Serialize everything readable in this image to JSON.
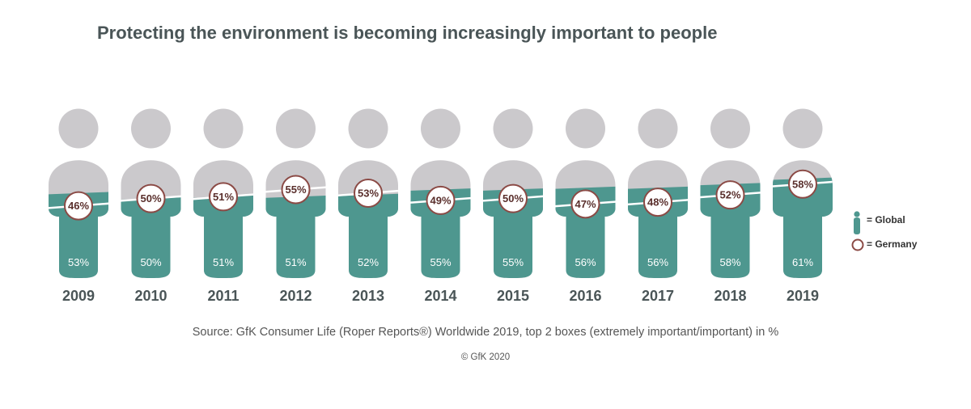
{
  "chart_data": {
    "type": "bar",
    "title": "Protecting the environment is becoming increasingly important to people",
    "categories": [
      "2009",
      "2010",
      "2011",
      "2012",
      "2013",
      "2014",
      "2015",
      "2016",
      "2017",
      "2018",
      "2019"
    ],
    "series": [
      {
        "name": "Global",
        "values": [
          53,
          50,
          51,
          51,
          52,
          55,
          55,
          56,
          56,
          58,
          61
        ],
        "labels": [
          "53%",
          "50%",
          "51%",
          "51%",
          "52%",
          "55%",
          "55%",
          "56%",
          "56%",
          "58%",
          "61%"
        ]
      },
      {
        "name": "Germany",
        "values": [
          46,
          50,
          51,
          55,
          53,
          49,
          50,
          47,
          48,
          52,
          58
        ],
        "labels": [
          "46%",
          "50%",
          "51%",
          "55%",
          "53%",
          "49%",
          "50%",
          "47%",
          "48%",
          "52%",
          "58%"
        ]
      }
    ],
    "legend": [
      {
        "label": "= Global",
        "series": "Global"
      },
      {
        "label": "= Germany",
        "series": "Germany"
      }
    ],
    "legend_position": "right",
    "source": "Source: GfK Consumer Life (Roper Reports®) Worldwide 2019, top 2 boxes (extremely important/important) in %",
    "copyright": "© GfK 2020",
    "colors": {
      "global": "#4e978f",
      "person_gray": "#cbc9cc",
      "germany_ring": "#8b4a45",
      "title": "#4a5557"
    }
  }
}
